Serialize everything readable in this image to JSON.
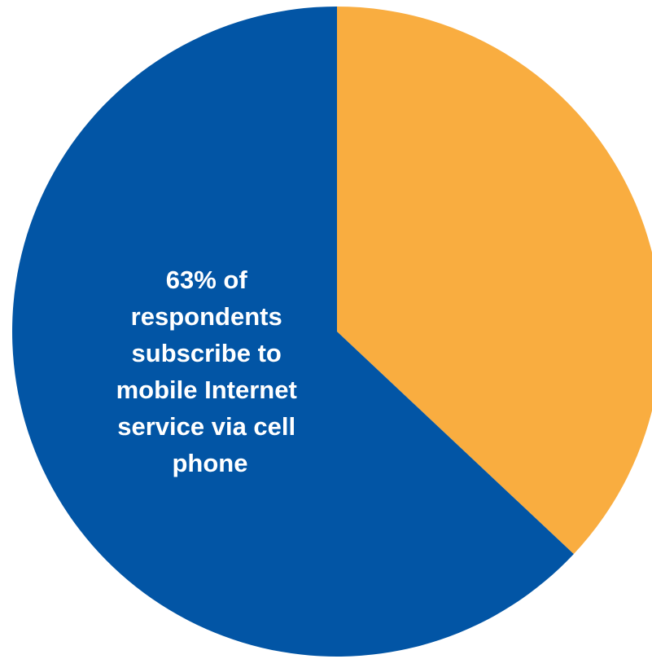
{
  "chart_data": {
    "type": "pie",
    "title": "",
    "slices": [
      {
        "name": "",
        "value": 63,
        "color": "#0255A5"
      },
      {
        "name": "",
        "value": 37,
        "color": "#F9AD40"
      }
    ],
    "annotation": {
      "lines": [
        "63% of",
        "respondents",
        "subscribe to",
        "mobile Internet",
        "service via cell",
        "phone"
      ]
    }
  }
}
